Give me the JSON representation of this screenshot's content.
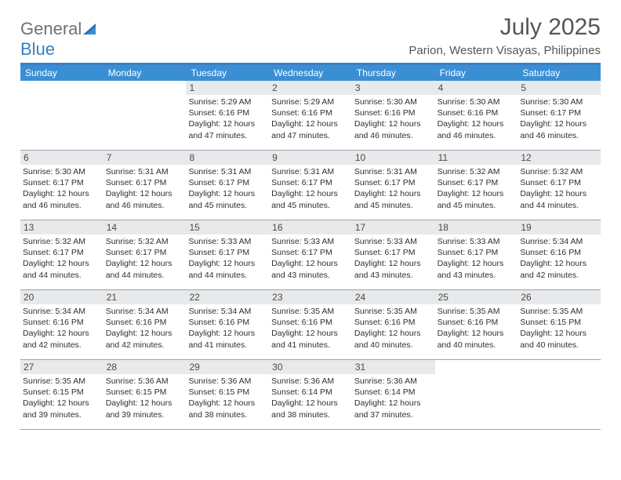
{
  "brand": {
    "part1": "General",
    "part2": "Blue"
  },
  "title": "July 2025",
  "location": "Parion, Western Visayas, Philippines",
  "colors": {
    "header_bar": "#3a8fd4",
    "top_border": "#3a7fc4",
    "daynum_bg": "#e7e9eb",
    "text": "#333333",
    "logo_gray": "#6f6f6f",
    "logo_blue": "#3a7fc4",
    "title_color": "#565656",
    "row_border": "#9aa3ab"
  },
  "days_of_week": [
    "Sunday",
    "Monday",
    "Tuesday",
    "Wednesday",
    "Thursday",
    "Friday",
    "Saturday"
  ],
  "weeks": [
    [
      null,
      null,
      {
        "n": "1",
        "sunrise": "Sunrise: 5:29 AM",
        "sunset": "Sunset: 6:16 PM",
        "daylight": "Daylight: 12 hours and 47 minutes."
      },
      {
        "n": "2",
        "sunrise": "Sunrise: 5:29 AM",
        "sunset": "Sunset: 6:16 PM",
        "daylight": "Daylight: 12 hours and 47 minutes."
      },
      {
        "n": "3",
        "sunrise": "Sunrise: 5:30 AM",
        "sunset": "Sunset: 6:16 PM",
        "daylight": "Daylight: 12 hours and 46 minutes."
      },
      {
        "n": "4",
        "sunrise": "Sunrise: 5:30 AM",
        "sunset": "Sunset: 6:16 PM",
        "daylight": "Daylight: 12 hours and 46 minutes."
      },
      {
        "n": "5",
        "sunrise": "Sunrise: 5:30 AM",
        "sunset": "Sunset: 6:17 PM",
        "daylight": "Daylight: 12 hours and 46 minutes."
      }
    ],
    [
      {
        "n": "6",
        "sunrise": "Sunrise: 5:30 AM",
        "sunset": "Sunset: 6:17 PM",
        "daylight": "Daylight: 12 hours and 46 minutes."
      },
      {
        "n": "7",
        "sunrise": "Sunrise: 5:31 AM",
        "sunset": "Sunset: 6:17 PM",
        "daylight": "Daylight: 12 hours and 46 minutes."
      },
      {
        "n": "8",
        "sunrise": "Sunrise: 5:31 AM",
        "sunset": "Sunset: 6:17 PM",
        "daylight": "Daylight: 12 hours and 45 minutes."
      },
      {
        "n": "9",
        "sunrise": "Sunrise: 5:31 AM",
        "sunset": "Sunset: 6:17 PM",
        "daylight": "Daylight: 12 hours and 45 minutes."
      },
      {
        "n": "10",
        "sunrise": "Sunrise: 5:31 AM",
        "sunset": "Sunset: 6:17 PM",
        "daylight": "Daylight: 12 hours and 45 minutes."
      },
      {
        "n": "11",
        "sunrise": "Sunrise: 5:32 AM",
        "sunset": "Sunset: 6:17 PM",
        "daylight": "Daylight: 12 hours and 45 minutes."
      },
      {
        "n": "12",
        "sunrise": "Sunrise: 5:32 AM",
        "sunset": "Sunset: 6:17 PM",
        "daylight": "Daylight: 12 hours and 44 minutes."
      }
    ],
    [
      {
        "n": "13",
        "sunrise": "Sunrise: 5:32 AM",
        "sunset": "Sunset: 6:17 PM",
        "daylight": "Daylight: 12 hours and 44 minutes."
      },
      {
        "n": "14",
        "sunrise": "Sunrise: 5:32 AM",
        "sunset": "Sunset: 6:17 PM",
        "daylight": "Daylight: 12 hours and 44 minutes."
      },
      {
        "n": "15",
        "sunrise": "Sunrise: 5:33 AM",
        "sunset": "Sunset: 6:17 PM",
        "daylight": "Daylight: 12 hours and 44 minutes."
      },
      {
        "n": "16",
        "sunrise": "Sunrise: 5:33 AM",
        "sunset": "Sunset: 6:17 PM",
        "daylight": "Daylight: 12 hours and 43 minutes."
      },
      {
        "n": "17",
        "sunrise": "Sunrise: 5:33 AM",
        "sunset": "Sunset: 6:17 PM",
        "daylight": "Daylight: 12 hours and 43 minutes."
      },
      {
        "n": "18",
        "sunrise": "Sunrise: 5:33 AM",
        "sunset": "Sunset: 6:17 PM",
        "daylight": "Daylight: 12 hours and 43 minutes."
      },
      {
        "n": "19",
        "sunrise": "Sunrise: 5:34 AM",
        "sunset": "Sunset: 6:16 PM",
        "daylight": "Daylight: 12 hours and 42 minutes."
      }
    ],
    [
      {
        "n": "20",
        "sunrise": "Sunrise: 5:34 AM",
        "sunset": "Sunset: 6:16 PM",
        "daylight": "Daylight: 12 hours and 42 minutes."
      },
      {
        "n": "21",
        "sunrise": "Sunrise: 5:34 AM",
        "sunset": "Sunset: 6:16 PM",
        "daylight": "Daylight: 12 hours and 42 minutes."
      },
      {
        "n": "22",
        "sunrise": "Sunrise: 5:34 AM",
        "sunset": "Sunset: 6:16 PM",
        "daylight": "Daylight: 12 hours and 41 minutes."
      },
      {
        "n": "23",
        "sunrise": "Sunrise: 5:35 AM",
        "sunset": "Sunset: 6:16 PM",
        "daylight": "Daylight: 12 hours and 41 minutes."
      },
      {
        "n": "24",
        "sunrise": "Sunrise: 5:35 AM",
        "sunset": "Sunset: 6:16 PM",
        "daylight": "Daylight: 12 hours and 40 minutes."
      },
      {
        "n": "25",
        "sunrise": "Sunrise: 5:35 AM",
        "sunset": "Sunset: 6:16 PM",
        "daylight": "Daylight: 12 hours and 40 minutes."
      },
      {
        "n": "26",
        "sunrise": "Sunrise: 5:35 AM",
        "sunset": "Sunset: 6:15 PM",
        "daylight": "Daylight: 12 hours and 40 minutes."
      }
    ],
    [
      {
        "n": "27",
        "sunrise": "Sunrise: 5:35 AM",
        "sunset": "Sunset: 6:15 PM",
        "daylight": "Daylight: 12 hours and 39 minutes."
      },
      {
        "n": "28",
        "sunrise": "Sunrise: 5:36 AM",
        "sunset": "Sunset: 6:15 PM",
        "daylight": "Daylight: 12 hours and 39 minutes."
      },
      {
        "n": "29",
        "sunrise": "Sunrise: 5:36 AM",
        "sunset": "Sunset: 6:15 PM",
        "daylight": "Daylight: 12 hours and 38 minutes."
      },
      {
        "n": "30",
        "sunrise": "Sunrise: 5:36 AM",
        "sunset": "Sunset: 6:14 PM",
        "daylight": "Daylight: 12 hours and 38 minutes."
      },
      {
        "n": "31",
        "sunrise": "Sunrise: 5:36 AM",
        "sunset": "Sunset: 6:14 PM",
        "daylight": "Daylight: 12 hours and 37 minutes."
      },
      null,
      null
    ]
  ]
}
